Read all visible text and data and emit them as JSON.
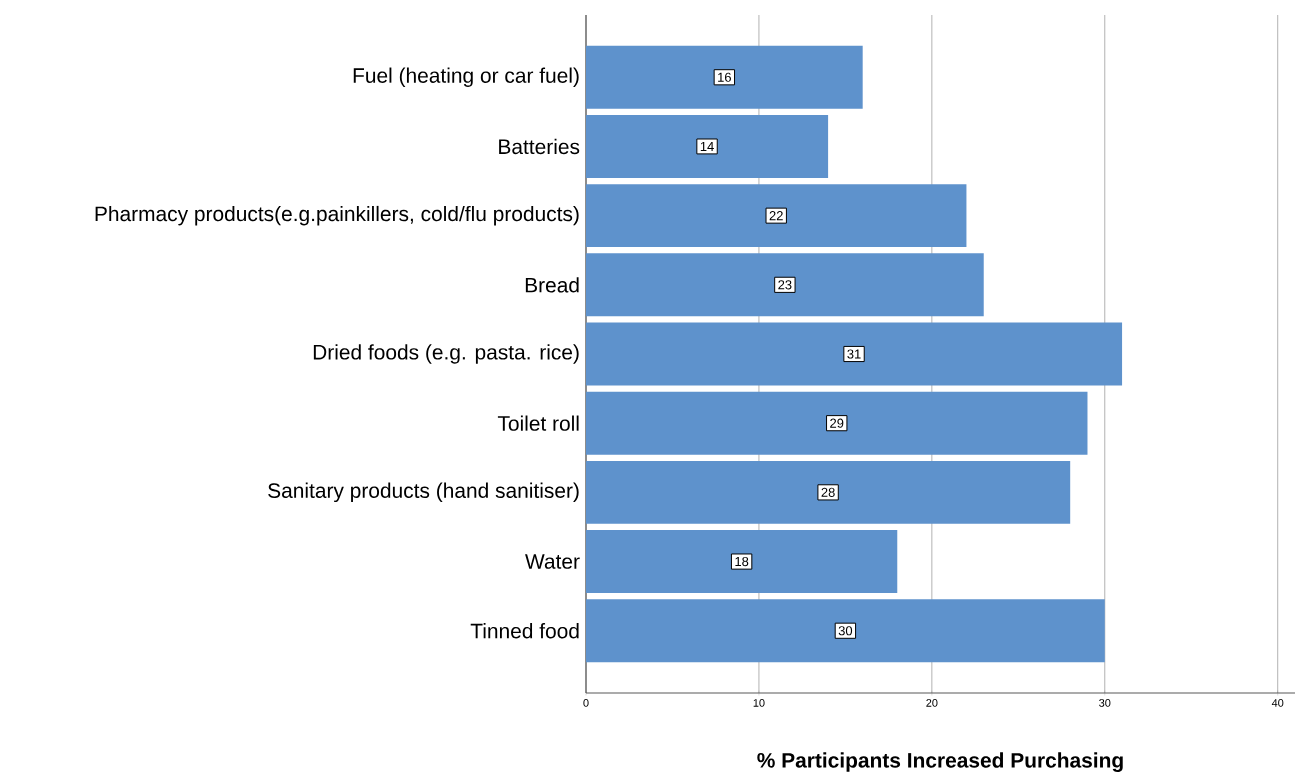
{
  "chart_data": {
    "type": "bar",
    "orientation": "horizontal",
    "categories": [
      "Fuel (heating or car fuel)",
      "Batteries",
      "Pharmacy products(e.g.painkillers, cold/flu products)",
      "Bread",
      "Dried foods (e.g. pasta. rice)",
      "Toilet roll",
      "Sanitary products (hand sanitiser)",
      "Water",
      "Tinned food"
    ],
    "values": [
      16,
      14,
      22,
      23,
      31,
      29,
      28,
      18,
      30
    ],
    "color": "#5e92cc",
    "xlabel": "% Participants Increased Purchasing",
    "xlim": [
      0,
      41
    ],
    "xticks": [
      0,
      10,
      20,
      30,
      40
    ],
    "grid": "x",
    "data_labels": true
  }
}
